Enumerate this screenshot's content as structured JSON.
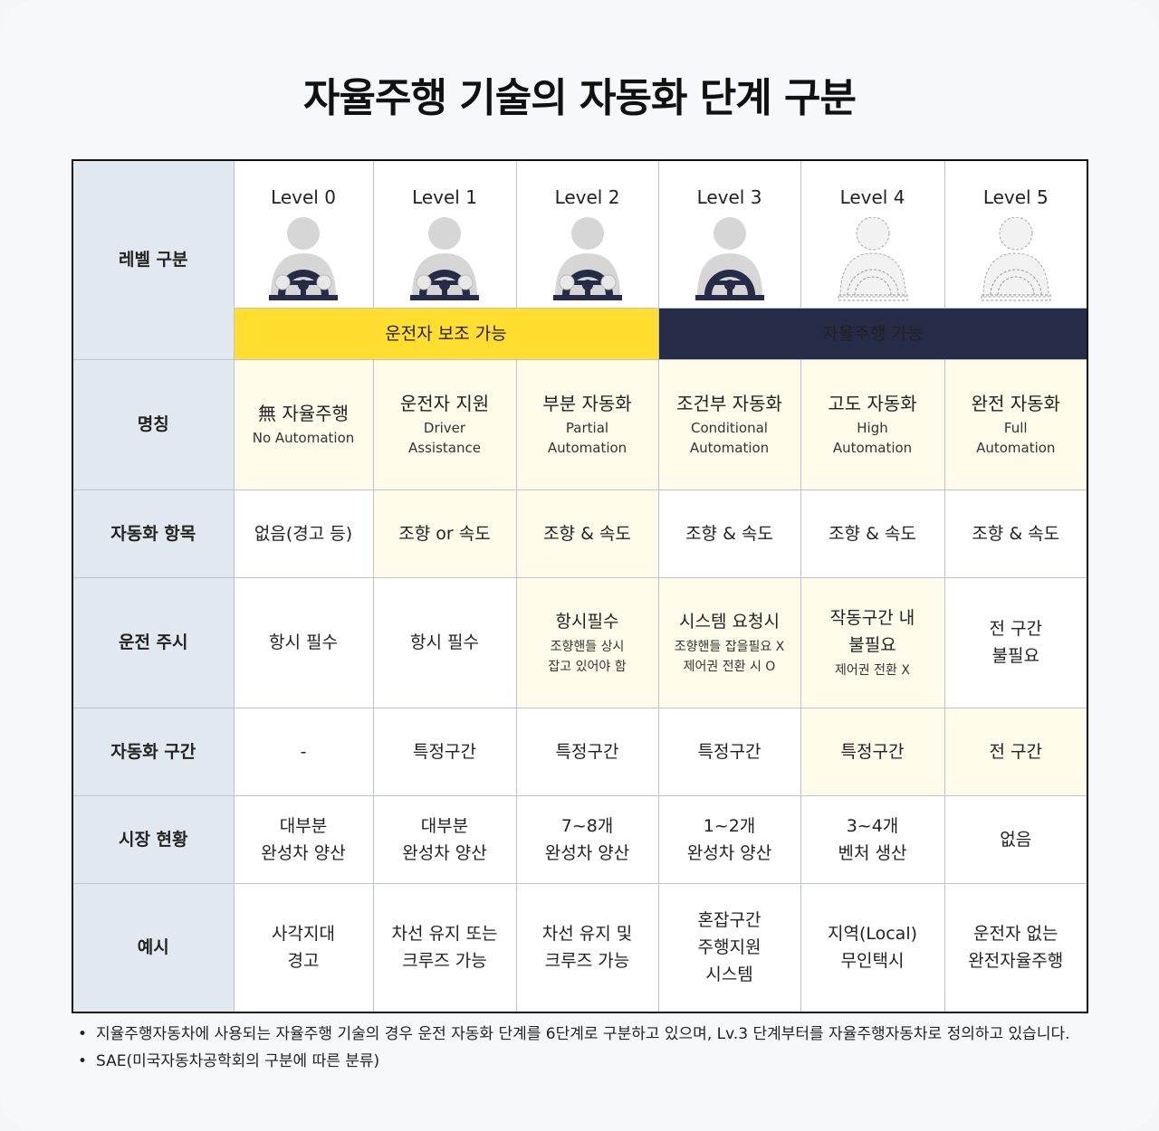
{
  "title": "자율주행 기술의 자동화 단계 구분",
  "row_heads": [
    "레벨 구분",
    "명칭",
    "자동화 항목",
    "운전 주시",
    "자동화 구간",
    "시장 현황",
    "예시"
  ],
  "levels": [
    "Level 0",
    "Level 1",
    "Level 2",
    "Level 3",
    "Level 4",
    "Level 5"
  ],
  "groups": {
    "assist": "운전자 보조 가능",
    "autonomous": "자율주행 가능"
  },
  "colors": {
    "yellow": "#ffde2f",
    "navy": "#262b47",
    "header_bg": "#e2e8ef",
    "highlight": "#fffbea"
  },
  "names": [
    {
      "ko": "無 자율주행",
      "en1": "No Automation",
      "en2": ""
    },
    {
      "ko": "운전자 지원",
      "en1": "Driver",
      "en2": "Assistance"
    },
    {
      "ko": "부분 자동화",
      "en1": "Partial",
      "en2": "Automation"
    },
    {
      "ko": "조건부 자동화",
      "en1": "Conditional",
      "en2": "Automation"
    },
    {
      "ko": "고도 자동화",
      "en1": "High",
      "en2": "Automation"
    },
    {
      "ko": "완전 자동화",
      "en1": "Full",
      "en2": "Automation"
    }
  ],
  "automation_items": [
    "없음(경고 등)",
    "조향 or 속도",
    "조향 & 속도",
    "조향 & 속도",
    "조향 & 속도",
    "조향 & 속도"
  ],
  "monitoring": [
    {
      "main1": "항시 필수",
      "main2": "",
      "sub1": "",
      "sub2": ""
    },
    {
      "main1": "항시 필수",
      "main2": "",
      "sub1": "",
      "sub2": ""
    },
    {
      "main1": "항시필수",
      "main2": "",
      "sub1": "조향핸들 상시",
      "sub2": "잡고 있어야 함"
    },
    {
      "main1": "시스템 요청시",
      "main2": "",
      "sub1": "조향핸들 잡을필요 X",
      "sub2": "제어권 전환 시 O"
    },
    {
      "main1": "작동구간 내",
      "main2": "불필요",
      "sub1": "제어권 전환 X",
      "sub2": ""
    },
    {
      "main1": "전 구간",
      "main2": "불필요",
      "sub1": "",
      "sub2": ""
    }
  ],
  "section": [
    "-",
    "특정구간",
    "특정구간",
    "특정구간",
    "특정구간",
    "전 구간"
  ],
  "market": [
    [
      "대부분",
      "완성차 양산"
    ],
    [
      "대부분",
      "완성차 양산"
    ],
    [
      "7~8개",
      "완성차 양산"
    ],
    [
      "1~2개",
      "완성차 양산"
    ],
    [
      "3~4개",
      "벤처 생산"
    ],
    [
      "없음",
      ""
    ]
  ],
  "examples": [
    [
      "사각지대",
      "경고",
      ""
    ],
    [
      "차선 유지 또는",
      "크루즈 가능",
      ""
    ],
    [
      "차선 유지 및",
      "크루즈 가능",
      ""
    ],
    [
      "혼잡구간",
      "주행지원",
      "시스템"
    ],
    [
      "지역(Local)",
      "무인택시",
      ""
    ],
    [
      "운전자 없는",
      "완전자율주행",
      ""
    ]
  ],
  "notes": [
    "지율주행자동차에 사용되는 자율주행 기술의 경우 운전 자동화 단계를 6단계로 구분하고 있으며, Lv.3 단계부터를 자율주행자동차로 정의하고 있습니다.",
    "SAE(미국자동차공학회의 구분에 따른 분류)"
  ]
}
